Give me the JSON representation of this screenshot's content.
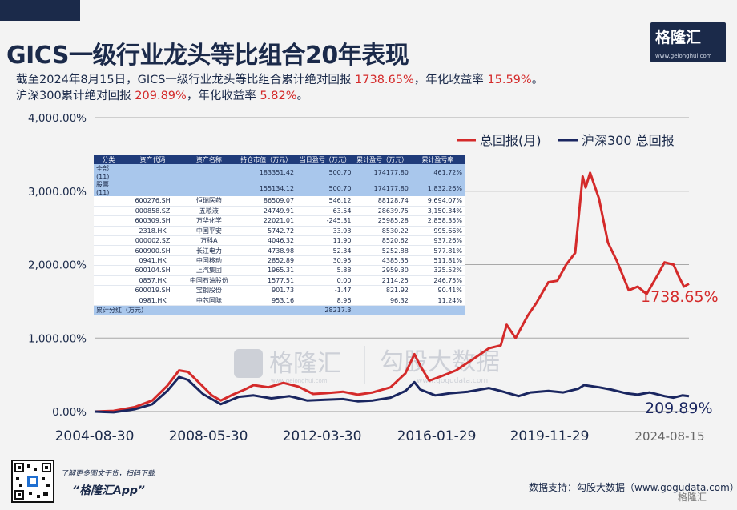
{
  "header": {
    "title": "GICS一级行业龙头等比组合20年表现",
    "line1_a": "截至2024年8月15日，GICS一级行业龙头等比组合累计绝对回报 ",
    "line1_v1": "1738.65%",
    "line1_b": "，年化收益率 ",
    "line1_v2": "15.59%",
    "line1_c": "。",
    "line2_a": "沪深300累计绝对回报 ",
    "line2_v1": "209.89%",
    "line2_b": "，年化收益率 ",
    "line2_v2": "5.82%",
    "line2_c": "。"
  },
  "logo": {
    "name": "格隆汇",
    "url": "www.gelonghui.com"
  },
  "watermark": {
    "left": "格隆汇",
    "left_url": "www.gelonghui.com",
    "right": "勾股大数据",
    "right_url": "www.gogudata.com"
  },
  "footer": {
    "small": "了解更多图文干货，扫码下载",
    "app": "“格隆汇App”",
    "source": "数据支持：勾股大数据（www.gogudata.com）",
    "logo_text": "格隆汇"
  },
  "colors": {
    "navy": "#1b2a4a",
    "red": "#d42a2a",
    "series2": "#1a2660"
  },
  "table": {
    "headers": [
      "分类",
      "资产代码",
      "资产名称",
      "持仓市值（万元）",
      "当日盈亏（万元）",
      "累计盈亏（万元）",
      "累计盈亏率"
    ],
    "rows": [
      [
        "全部(11)",
        "",
        "",
        "183351.42",
        "500.70",
        "174177.80",
        "461.72%"
      ],
      [
        "股票(11)",
        "",
        "",
        "155134.12",
        "500.70",
        "174177.80",
        "1,832.26%"
      ],
      [
        "",
        "600276.SH",
        "恒瑞医药",
        "86509.07",
        "546.12",
        "88128.74",
        "9,694.07%"
      ],
      [
        "",
        "000858.SZ",
        "五粮液",
        "24749.91",
        "63.54",
        "28639.75",
        "3,150.34%"
      ],
      [
        "",
        "600309.SH",
        "万华化学",
        "22021.01",
        "-245.31",
        "25985.28",
        "2,858.35%"
      ],
      [
        "",
        "2318.HK",
        "中国平安",
        "5742.72",
        "33.93",
        "8530.22",
        "995.66%"
      ],
      [
        "",
        "000002.SZ",
        "万科A",
        "4046.32",
        "11.90",
        "8520.62",
        "937.26%"
      ],
      [
        "",
        "600900.SH",
        "长江电力",
        "4738.98",
        "52.34",
        "5252.88",
        "577.81%"
      ],
      [
        "",
        "0941.HK",
        "中国移动",
        "2852.89",
        "30.95",
        "4385.35",
        "511.81%"
      ],
      [
        "",
        "600104.SH",
        "上汽集团",
        "1965.31",
        "5.88",
        "2959.30",
        "325.52%"
      ],
      [
        "",
        "0857.HK",
        "中国石油股份",
        "1577.51",
        "0.00",
        "2114.25",
        "246.75%"
      ],
      [
        "",
        "600019.SH",
        "宝钢股份",
        "901.73",
        "-1.47",
        "821.92",
        "90.41%"
      ],
      [
        "",
        "0981.HK",
        "中芯国际",
        "953.16",
        "8.96",
        "96.32",
        "11.24%"
      ]
    ],
    "dividend_label": "累计分红（万元）",
    "dividend_value": "28217.3"
  },
  "chart_data": {
    "type": "line",
    "title": "GICS一级行业龙头等比组合20年表现",
    "ylim": [
      0,
      4000
    ],
    "y_ticks": [
      "0.00%",
      "1,000.00%",
      "2,000.00%",
      "3,000.00%",
      "4,000.00%"
    ],
    "x_ticks": [
      "2004-08-30",
      "2008-05-30",
      "2012-03-30",
      "2016-01-29",
      "2019-11-29",
      "2024-08-15"
    ],
    "x_range": [
      2004.66,
      2024.62
    ],
    "grid": true,
    "legend_position": "top-right",
    "end_labels": [
      "1738.65%",
      "209.89%"
    ],
    "series": [
      {
        "name": "总回报(月)",
        "color": "#d42a2a",
        "points": [
          [
            2004.66,
            0
          ],
          [
            2005.3,
            10
          ],
          [
            2006.0,
            60
          ],
          [
            2006.6,
            150
          ],
          [
            2007.1,
            350
          ],
          [
            2007.5,
            560
          ],
          [
            2007.8,
            540
          ],
          [
            2008.2,
            380
          ],
          [
            2008.6,
            220
          ],
          [
            2008.9,
            150
          ],
          [
            2009.3,
            230
          ],
          [
            2009.7,
            300
          ],
          [
            2010.0,
            360
          ],
          [
            2010.5,
            330
          ],
          [
            2011.0,
            390
          ],
          [
            2011.5,
            340
          ],
          [
            2012.0,
            240
          ],
          [
            2012.4,
            250
          ],
          [
            2013.0,
            270
          ],
          [
            2013.5,
            230
          ],
          [
            2014.0,
            260
          ],
          [
            2014.6,
            330
          ],
          [
            2015.1,
            520
          ],
          [
            2015.4,
            780
          ],
          [
            2015.6,
            620
          ],
          [
            2015.9,
            420
          ],
          [
            2016.3,
            480
          ],
          [
            2016.8,
            560
          ],
          [
            2017.4,
            720
          ],
          [
            2017.9,
            860
          ],
          [
            2018.3,
            900
          ],
          [
            2018.5,
            1180
          ],
          [
            2018.8,
            1000
          ],
          [
            2019.2,
            1300
          ],
          [
            2019.5,
            1480
          ],
          [
            2019.9,
            1760
          ],
          [
            2020.2,
            1780
          ],
          [
            2020.5,
            2000
          ],
          [
            2020.8,
            2160
          ],
          [
            2021.05,
            3200
          ],
          [
            2021.15,
            3050
          ],
          [
            2021.3,
            3250
          ],
          [
            2021.6,
            2900
          ],
          [
            2021.9,
            2300
          ],
          [
            2022.2,
            2050
          ],
          [
            2022.6,
            1650
          ],
          [
            2022.9,
            1700
          ],
          [
            2023.2,
            1600
          ],
          [
            2023.6,
            1880
          ],
          [
            2023.8,
            2030
          ],
          [
            2024.1,
            2000
          ],
          [
            2024.3,
            1820
          ],
          [
            2024.45,
            1700
          ],
          [
            2024.62,
            1738.65
          ]
        ]
      },
      {
        "name": "沪深300 总回报",
        "color": "#1a2660",
        "points": [
          [
            2004.66,
            0
          ],
          [
            2005.3,
            -10
          ],
          [
            2006.0,
            30
          ],
          [
            2006.6,
            100
          ],
          [
            2007.1,
            280
          ],
          [
            2007.5,
            470
          ],
          [
            2007.8,
            430
          ],
          [
            2008.3,
            240
          ],
          [
            2008.9,
            100
          ],
          [
            2009.5,
            200
          ],
          [
            2010.0,
            220
          ],
          [
            2010.6,
            180
          ],
          [
            2011.2,
            210
          ],
          [
            2011.8,
            150
          ],
          [
            2012.4,
            160
          ],
          [
            2013.0,
            170
          ],
          [
            2013.5,
            140
          ],
          [
            2014.0,
            150
          ],
          [
            2014.6,
            190
          ],
          [
            2015.1,
            280
          ],
          [
            2015.4,
            400
          ],
          [
            2015.6,
            300
          ],
          [
            2016.1,
            220
          ],
          [
            2016.6,
            250
          ],
          [
            2017.2,
            270
          ],
          [
            2017.9,
            320
          ],
          [
            2018.3,
            280
          ],
          [
            2018.9,
            210
          ],
          [
            2019.3,
            260
          ],
          [
            2019.9,
            280
          ],
          [
            2020.4,
            260
          ],
          [
            2020.9,
            310
          ],
          [
            2021.1,
            360
          ],
          [
            2021.6,
            330
          ],
          [
            2022.0,
            300
          ],
          [
            2022.5,
            250
          ],
          [
            2022.9,
            230
          ],
          [
            2023.3,
            260
          ],
          [
            2023.8,
            210
          ],
          [
            2024.1,
            190
          ],
          [
            2024.4,
            220
          ],
          [
            2024.62,
            209.89
          ]
        ]
      }
    ]
  }
}
